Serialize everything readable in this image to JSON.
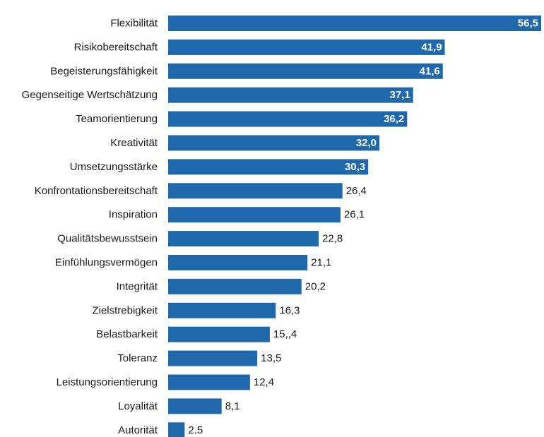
{
  "chart_data": {
    "type": "bar",
    "orientation": "horizontal",
    "color": "#1f68ab",
    "categories": [
      "Flexibilität",
      "Risikobereitschaft",
      "Begeisterungsfähigkeit",
      "Gegenseitige Wertschätzung",
      "Teamorientierung",
      "Kreativität",
      "Umsetzungsstärke",
      "Konfrontationsbereitschaft",
      "Inspiration",
      "Qualitätsbewusstsein",
      "Einfühlungsvermögen",
      "Integrität",
      "Zielstrebigkeit",
      "Belastbarkeit",
      "Toleranz",
      "Leistungsorientierung",
      "Loyalität",
      "Autorität"
    ],
    "values": [
      56.5,
      41.9,
      41.6,
      37.1,
      36.2,
      32.0,
      30.3,
      26.4,
      26.1,
      22.8,
      21.1,
      20.2,
      16.3,
      15.4,
      13.5,
      12.4,
      8.1,
      2.5
    ],
    "value_labels": [
      "56,5",
      "41,9",
      "41,6",
      "37,1",
      "36,2",
      "32,0",
      "30,3",
      "26,4",
      "26,1",
      "22,8",
      "21,1",
      "20,2",
      "16,3",
      "15,,4",
      "13,5",
      "12,4",
      "8,1",
      "2.5"
    ]
  }
}
